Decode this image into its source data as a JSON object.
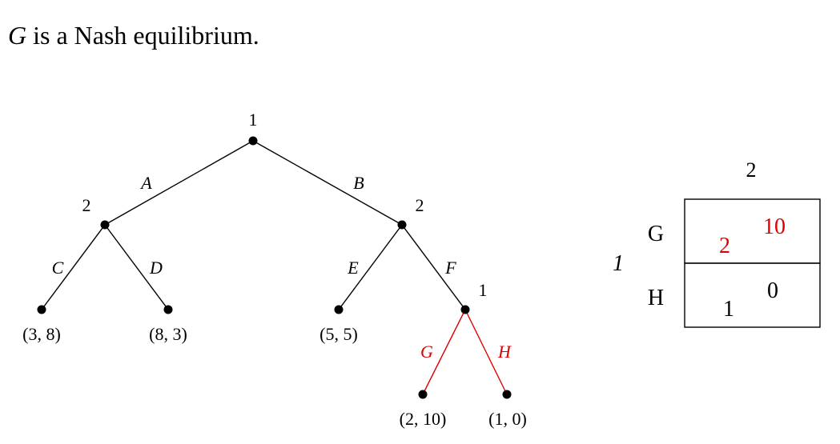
{
  "heading": {
    "variable": "G",
    "rest": " is a Nash equilibrium."
  },
  "tree": {
    "nodes": [
      {
        "id": "root",
        "player": "1"
      },
      {
        "id": "a",
        "player": "2"
      },
      {
        "id": "b",
        "player": "2"
      },
      {
        "id": "f",
        "player": "1"
      }
    ],
    "edges": [
      {
        "from": "root",
        "to": "a",
        "label": "A"
      },
      {
        "from": "root",
        "to": "b",
        "label": "B"
      },
      {
        "from": "a",
        "to": "c",
        "label": "C"
      },
      {
        "from": "a",
        "to": "d",
        "label": "D"
      },
      {
        "from": "b",
        "to": "e",
        "label": "E"
      },
      {
        "from": "b",
        "to": "f",
        "label": "F"
      },
      {
        "from": "f",
        "to": "g",
        "label": "G"
      },
      {
        "from": "f",
        "to": "h",
        "label": "H"
      }
    ],
    "payoffs": [
      {
        "leaf": "c",
        "text": "(3, 8)"
      },
      {
        "leaf": "d",
        "text": "(8, 3)"
      },
      {
        "leaf": "e",
        "text": "(5, 5)"
      },
      {
        "leaf": "g",
        "text": "(2, 10)"
      },
      {
        "leaf": "h",
        "text": "(1, 0)"
      }
    ],
    "highlight_color": "#e00000"
  },
  "matrix": {
    "column_player": "2",
    "row_player": "1",
    "rows": [
      {
        "label": "G",
        "p1": "2",
        "p2": "10",
        "highlight": true
      },
      {
        "label": "H",
        "p1": "1",
        "p2": "0",
        "highlight": false
      }
    ]
  }
}
